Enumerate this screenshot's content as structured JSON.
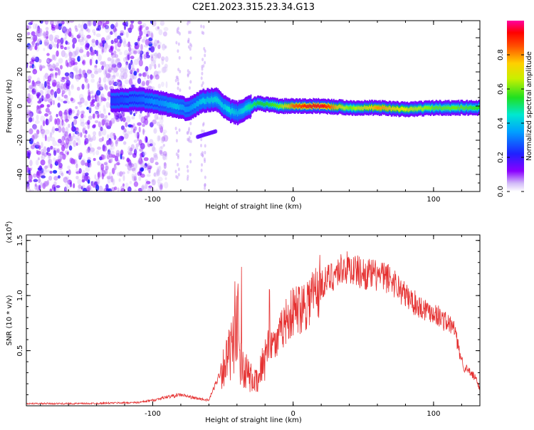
{
  "title": "C2E1.2023.315.23.34.G13",
  "colors": {
    "snr_line": "#e53030",
    "axis": "#000000",
    "spectrogram_low": "#ffffff",
    "spectrogram_mid": "#7b00e8",
    "spectrogram_high": "#ff0000"
  },
  "chart_data": [
    {
      "type": "heatmap",
      "title": "C2E1.2023.315.23.34.G13",
      "xlabel": "Height of straight line (km)",
      "ylabel": "Frequency (Hz)",
      "xlim": [
        -190,
        133
      ],
      "ylim": [
        -50,
        50
      ],
      "xticks": [
        -100,
        0,
        100
      ],
      "yticks": [
        -40,
        -20,
        0,
        20,
        40
      ],
      "colorbar": {
        "label": "Normalized spectral amplitude",
        "range": [
          0.0,
          1.0
        ],
        "ticks": [
          "0.0",
          "0.2",
          "0.4",
          "0.6",
          "0.8"
        ],
        "colormap": "white-purple-blue-cyan-green-yellow-red-magenta"
      },
      "features": [
        {
          "name": "noise region",
          "x_range": [
            -190,
            -100
          ],
          "freq_range": [
            -50,
            50
          ],
          "amplitude": 0.05
        },
        {
          "name": "central line",
          "x_range": [
            -130,
            133
          ],
          "center_freq": 0,
          "amplitude_range": [
            0.2,
            1.0
          ]
        },
        {
          "name": "sideband",
          "x_range": [
            -68,
            -55
          ],
          "center_freq": -18,
          "amplitude": 0.1
        }
      ],
      "centerline": {
        "x": [
          -130,
          -110,
          -95,
          -85,
          -75,
          -65,
          -55,
          -50,
          -45,
          -40,
          -35,
          -30,
          -25,
          -20,
          -10,
          0,
          20,
          40,
          60,
          80,
          100,
          120,
          133
        ],
        "freq": [
          3,
          4,
          2,
          0,
          -2,
          3,
          4,
          0,
          -3,
          -4,
          -2,
          0,
          2,
          1,
          0,
          0,
          0,
          -1,
          -1,
          -2,
          -1,
          -1,
          -1
        ],
        "amplitude": [
          0.25,
          0.3,
          0.35,
          0.4,
          0.35,
          0.4,
          0.45,
          0.4,
          0.45,
          0.4,
          0.45,
          0.5,
          0.55,
          0.55,
          0.6,
          0.85,
          0.95,
          0.6,
          0.8,
          0.7,
          0.6,
          0.6,
          0.55
        ]
      }
    },
    {
      "type": "line",
      "xlabel": "Height of straight line (km)",
      "ylabel": "SNR (10 * v/v)",
      "y_multiplier": "(x10^4)",
      "y_multiplier_base": "(x10",
      "y_multiplier_exp": "4",
      "xlim": [
        -190,
        133
      ],
      "ylim": [
        0,
        1.55
      ],
      "xticks": [
        -100,
        0,
        100
      ],
      "yticks": [
        0.5,
        1.0,
        1.5
      ],
      "yticklabels": [
        "0.5",
        "1.0",
        "1.5"
      ],
      "series": [
        {
          "x": [
            -190,
            -150,
            -110,
            -100,
            -90,
            -80,
            -70,
            -60,
            -52,
            -46,
            -42,
            -38,
            -35,
            -30,
            -25,
            -20,
            -16,
            -12,
            -8,
            -4,
            0,
            5,
            10,
            20,
            30,
            35,
            40,
            50,
            60,
            70,
            80,
            90,
            100,
            110,
            115,
            118,
            122,
            126,
            130,
            133
          ],
          "y": [
            0.02,
            0.02,
            0.03,
            0.05,
            0.08,
            0.1,
            0.07,
            0.05,
            0.3,
            0.45,
            0.55,
            0.4,
            0.35,
            0.25,
            0.2,
            0.5,
            0.6,
            0.55,
            0.7,
            0.8,
            0.85,
            0.9,
            0.95,
            1.1,
            1.2,
            1.25,
            1.25,
            1.2,
            1.18,
            1.15,
            1.0,
            0.9,
            0.85,
            0.75,
            0.7,
            0.5,
            0.35,
            0.3,
            0.25,
            0.15
          ]
        }
      ]
    }
  ]
}
